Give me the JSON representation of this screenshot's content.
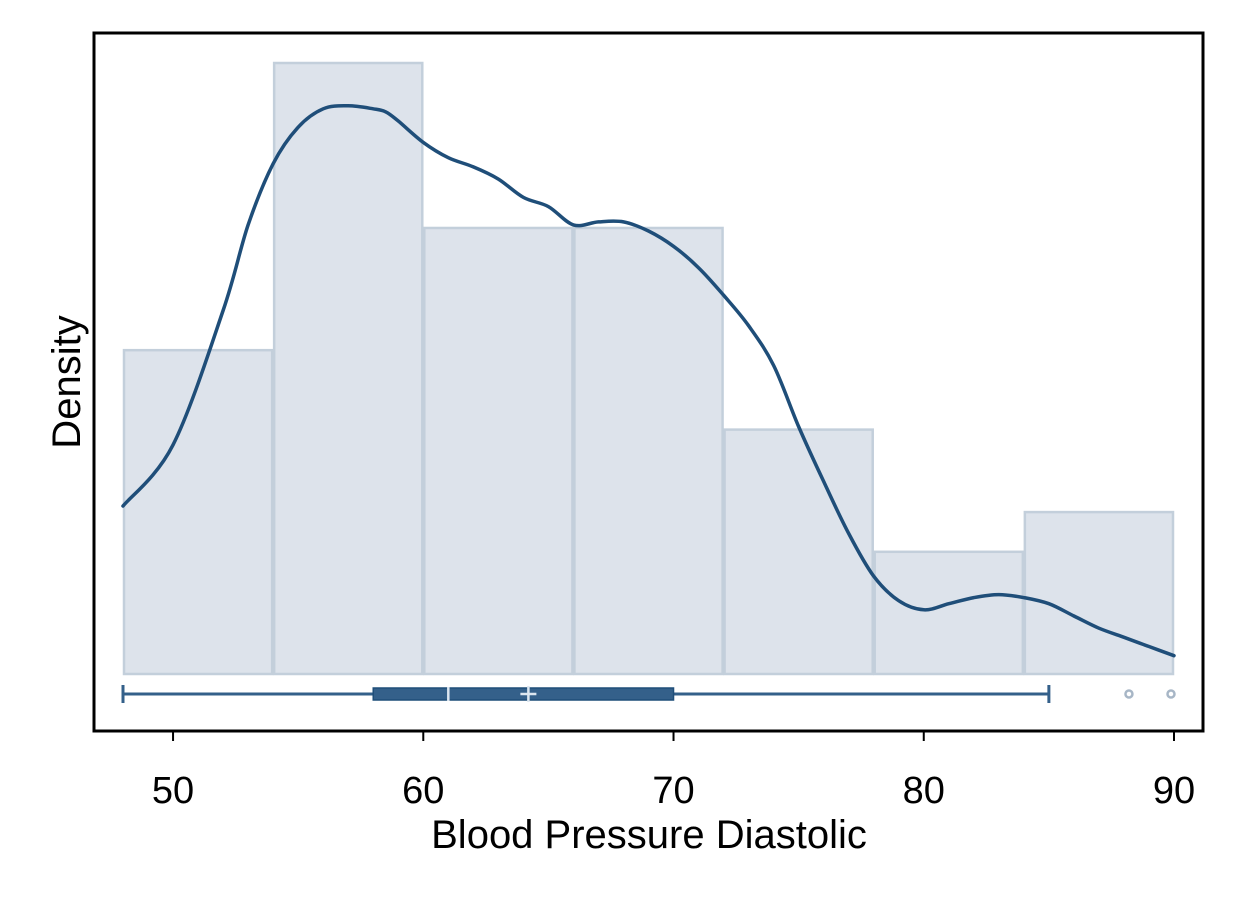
{
  "chart_data": {
    "type": "histogram",
    "title": "",
    "xlabel": "Blood Pressure Diastolic",
    "ylabel": "Density",
    "xlim": [
      48,
      90
    ],
    "x_ticks": [
      50,
      60,
      70,
      80,
      90
    ],
    "y_tick_labels_shown": false,
    "grid": false,
    "legend": "none",
    "histogram": {
      "bin_edges": [
        48,
        54,
        60,
        66,
        72,
        78,
        84,
        90
      ],
      "relative_heights": [
        0.53,
        1.0,
        0.73,
        0.73,
        0.4,
        0.2,
        0.265
      ]
    },
    "density_curve": {
      "x": [
        48,
        50,
        52,
        53,
        54,
        55,
        56,
        57,
        58,
        58.5,
        59,
        60,
        61,
        62,
        63,
        64,
        65,
        66,
        67,
        68,
        69,
        70,
        71,
        72,
        73,
        74,
        75,
        76,
        77,
        78,
        79,
        80,
        81,
        82,
        83,
        84,
        85,
        86,
        87,
        88,
        89,
        90
      ],
      "y": [
        0.275,
        0.375,
        0.595,
        0.735,
        0.835,
        0.895,
        0.925,
        0.93,
        0.925,
        0.92,
        0.905,
        0.87,
        0.845,
        0.83,
        0.81,
        0.78,
        0.765,
        0.735,
        0.74,
        0.74,
        0.725,
        0.7,
        0.665,
        0.62,
        0.57,
        0.505,
        0.405,
        0.315,
        0.23,
        0.16,
        0.12,
        0.105,
        0.115,
        0.125,
        0.13,
        0.125,
        0.115,
        0.095,
        0.075,
        0.06,
        0.045,
        0.03
      ]
    },
    "boxplot": {
      "whisker_low": 48,
      "q1": 58,
      "median": 61,
      "mean": 64.2,
      "q3": 70,
      "whisker_high": 85,
      "outliers": [
        88.2,
        90
      ]
    },
    "colors": {
      "bar_fill": "#dde3eb",
      "bar_stroke": "#c3cfdb",
      "curve": "#1f4e79",
      "box": "#34608a",
      "box_marker": "#dce6f0",
      "outlier": "#a7b6c6",
      "frame": "#000000"
    }
  }
}
